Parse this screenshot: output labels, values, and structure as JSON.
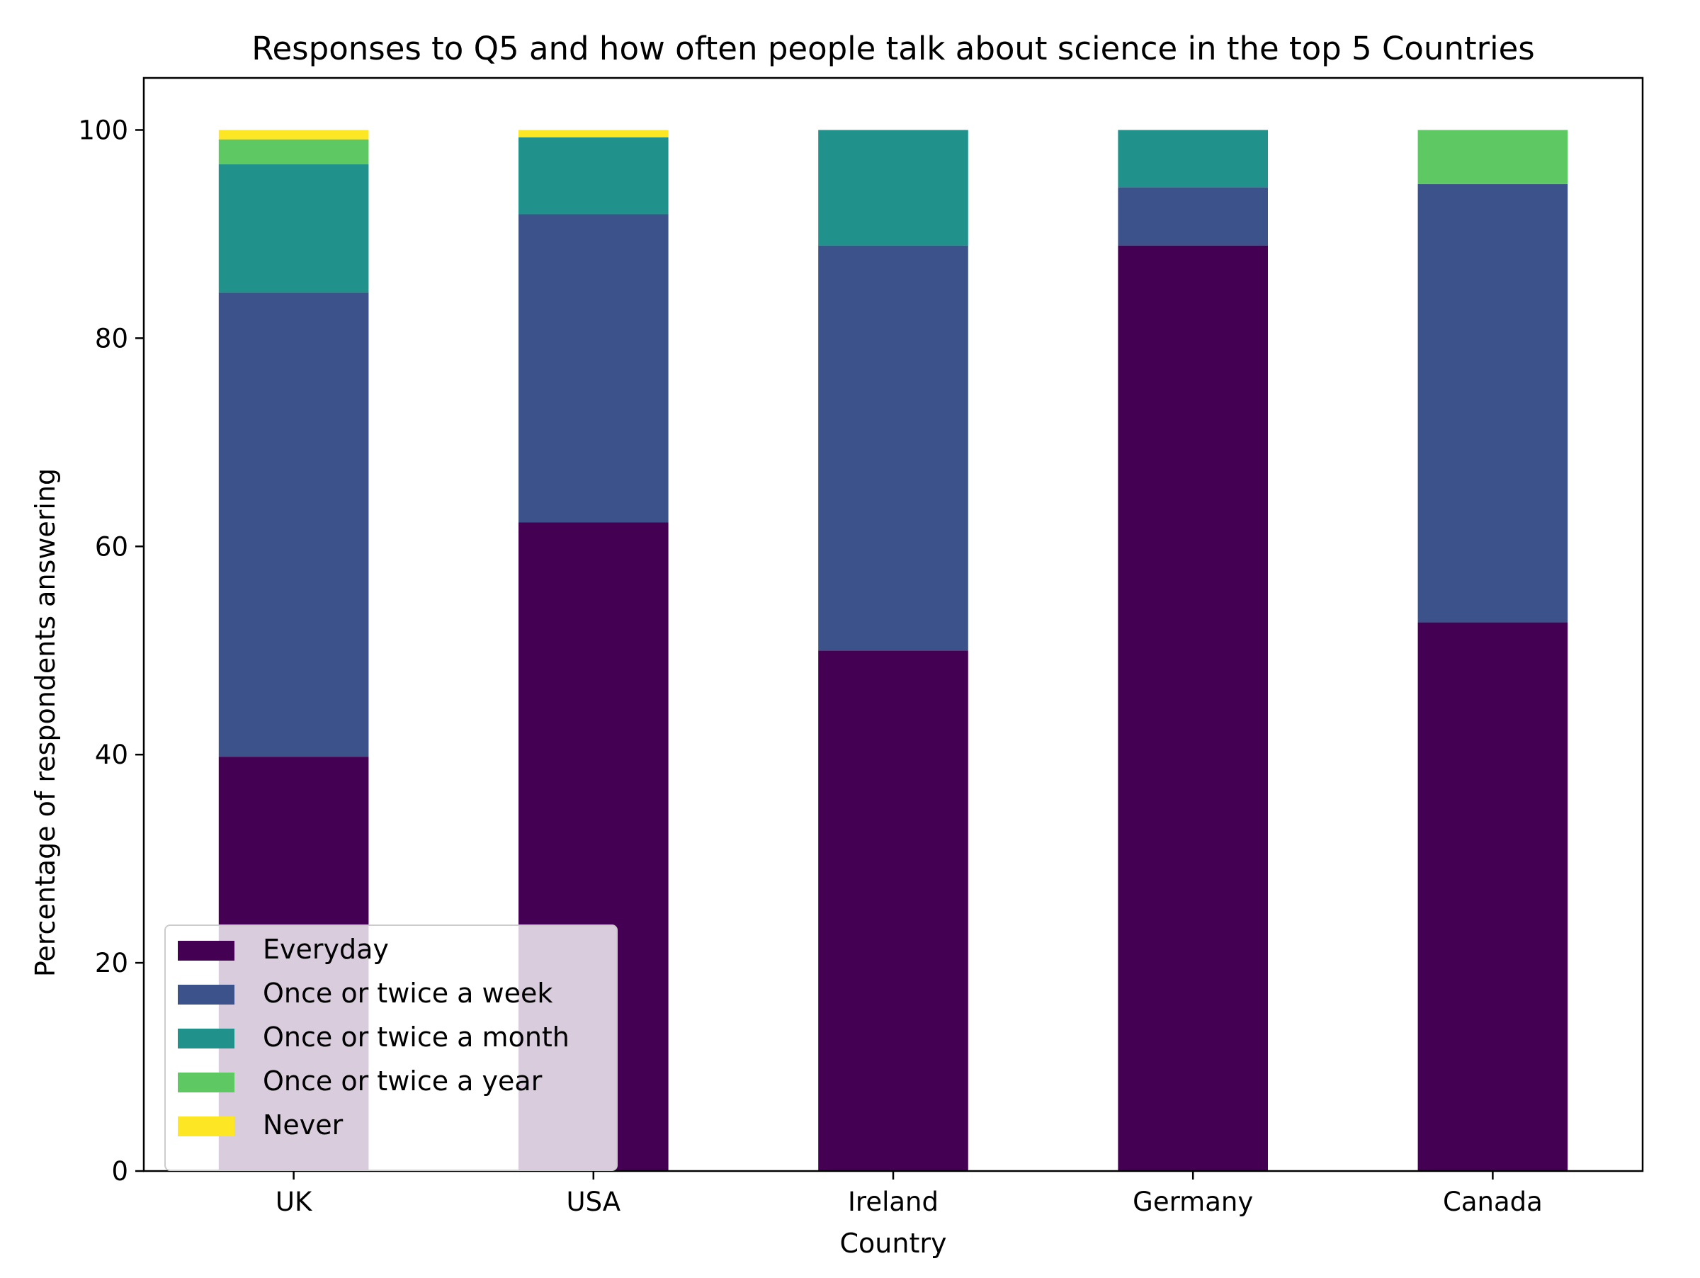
{
  "chart_data": {
    "type": "bar",
    "stacked": true,
    "title": "Responses to Q5 and how often people talk about science in the top 5 Countries",
    "xlabel": "Country",
    "ylabel": "Percentage of respondents answering",
    "categories": [
      "UK",
      "USA",
      "Ireland",
      "Germany",
      "Canada"
    ],
    "ylim": [
      0,
      105
    ],
    "yticks": [
      "0",
      "20",
      "40",
      "60",
      "80",
      "100"
    ],
    "grid": false,
    "legend_position": "lower-left",
    "series": [
      {
        "name": "Everyday",
        "color": "#440154",
        "values": [
          39.8,
          62.3,
          50.0,
          88.9,
          52.7
        ]
      },
      {
        "name": "Once or twice a week",
        "color": "#3b528b",
        "values": [
          44.6,
          29.6,
          38.9,
          5.6,
          42.1
        ]
      },
      {
        "name": "Once or twice a month",
        "color": "#21918c",
        "values": [
          12.3,
          7.4,
          11.1,
          5.5,
          0.0
        ]
      },
      {
        "name": "Once or twice a year",
        "color": "#5ec962",
        "values": [
          2.4,
          0.0,
          0.0,
          0.0,
          5.2
        ]
      },
      {
        "name": "Never",
        "color": "#fde725",
        "values": [
          0.9,
          0.7,
          0.0,
          0.0,
          0.0
        ]
      }
    ]
  }
}
